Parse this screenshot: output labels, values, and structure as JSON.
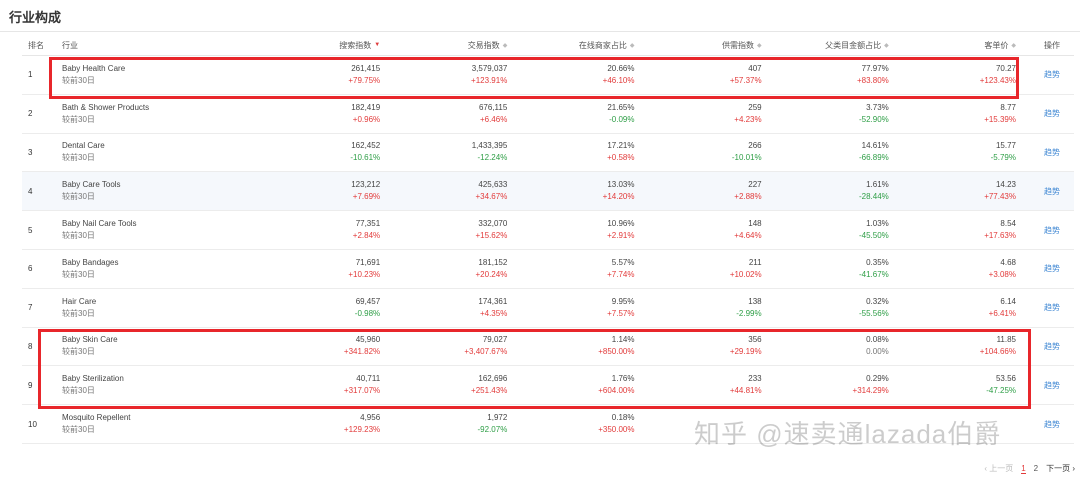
{
  "section_title": "行业构成",
  "columns": {
    "rank": "排名",
    "industry": "行业",
    "search": "搜索指数",
    "trade": "交易指数",
    "online_share": "在线商家占比",
    "supply": "供需指数",
    "parent_amount_share": "父类目金额占比",
    "unit_price": "客单价",
    "action": "操作"
  },
  "compare_label": "较前30日",
  "trend_label": "趋势",
  "rows": [
    {
      "rank": "1",
      "name": "Baby Health Care",
      "search": "261,415",
      "search_chg": "+79.75%",
      "trade": "3,579,037",
      "trade_chg": "+123.91%",
      "online": "20.66%",
      "online_chg": "+46.10%",
      "supply": "407",
      "supply_chg": "+57.37%",
      "parent": "77.97%",
      "parent_chg": "+83.80%",
      "price": "70.27",
      "price_chg": "+123.43%"
    },
    {
      "rank": "2",
      "name": "Bath & Shower Products",
      "search": "182,419",
      "search_chg": "+0.96%",
      "trade": "676,115",
      "trade_chg": "+6.46%",
      "online": "21.65%",
      "online_chg": "-0.09%",
      "supply": "259",
      "supply_chg": "+4.23%",
      "parent": "3.73%",
      "parent_chg": "-52.90%",
      "price": "8.77",
      "price_chg": "+15.39%"
    },
    {
      "rank": "3",
      "name": "Dental Care",
      "search": "162,452",
      "search_chg": "-10.61%",
      "trade": "1,433,395",
      "trade_chg": "-12.24%",
      "online": "17.21%",
      "online_chg": "+0.58%",
      "supply": "266",
      "supply_chg": "-10.01%",
      "parent": "14.61%",
      "parent_chg": "-66.89%",
      "price": "15.77",
      "price_chg": "-5.79%"
    },
    {
      "rank": "4",
      "name": "Baby Care Tools",
      "search": "123,212",
      "search_chg": "+7.69%",
      "trade": "425,633",
      "trade_chg": "+34.67%",
      "online": "13.03%",
      "online_chg": "+14.20%",
      "supply": "227",
      "supply_chg": "+2.88%",
      "parent": "1.61%",
      "parent_chg": "-28.44%",
      "price": "14.23",
      "price_chg": "+77.43%"
    },
    {
      "rank": "5",
      "name": "Baby Nail Care Tools",
      "search": "77,351",
      "search_chg": "+2.84%",
      "trade": "332,070",
      "trade_chg": "+15.62%",
      "online": "10.96%",
      "online_chg": "+2.91%",
      "supply": "148",
      "supply_chg": "+4.64%",
      "parent": "1.03%",
      "parent_chg": "-45.50%",
      "price": "8.54",
      "price_chg": "+17.63%"
    },
    {
      "rank": "6",
      "name": "Baby Bandages",
      "search": "71,691",
      "search_chg": "+10.23%",
      "trade": "181,152",
      "trade_chg": "+20.24%",
      "online": "5.57%",
      "online_chg": "+7.74%",
      "supply": "211",
      "supply_chg": "+10.02%",
      "parent": "0.35%",
      "parent_chg": "-41.67%",
      "price": "4.68",
      "price_chg": "+3.08%"
    },
    {
      "rank": "7",
      "name": "Hair Care",
      "search": "69,457",
      "search_chg": "-0.98%",
      "trade": "174,361",
      "trade_chg": "+4.35%",
      "online": "9.95%",
      "online_chg": "+7.57%",
      "supply": "138",
      "supply_chg": "-2.99%",
      "parent": "0.32%",
      "parent_chg": "-55.56%",
      "price": "6.14",
      "price_chg": "+6.41%"
    },
    {
      "rank": "8",
      "name": "Baby Skin Care",
      "search": "45,960",
      "search_chg": "+341.82%",
      "trade": "79,027",
      "trade_chg": "+3,407.67%",
      "online": "1.14%",
      "online_chg": "+850.00%",
      "supply": "356",
      "supply_chg": "+29.19%",
      "parent": "0.08%",
      "parent_chg": "0.00%",
      "price": "11.85",
      "price_chg": "+104.66%"
    },
    {
      "rank": "9",
      "name": "Baby Sterilization",
      "search": "40,711",
      "search_chg": "+317.07%",
      "trade": "162,696",
      "trade_chg": "+251.43%",
      "online": "1.76%",
      "online_chg": "+604.00%",
      "supply": "233",
      "supply_chg": "+44.81%",
      "parent": "0.29%",
      "parent_chg": "+314.29%",
      "price": "53.56",
      "price_chg": "-47.25%"
    },
    {
      "rank": "10",
      "name": "Mosquito Repellent",
      "search": "4,956",
      "search_chg": "+129.23%",
      "trade": "1,972",
      "trade_chg": "-92.07%",
      "online": "0.18%",
      "online_chg": "+350.00%",
      "supply": "",
      "supply_chg": "",
      "parent": "",
      "parent_chg": "",
      "price": "",
      "price_chg": ""
    }
  ],
  "pagination": {
    "prev": "‹ 上一页",
    "pages": [
      "1",
      "2"
    ],
    "current": "1",
    "next": "下一页 ›"
  },
  "watermark": "知乎 @速卖通lazada伯爵",
  "colors": {
    "increase": "#e23b3b",
    "decrease": "#2e9e46",
    "link": "#3d86d3",
    "annotation_box": "#e8262b"
  }
}
